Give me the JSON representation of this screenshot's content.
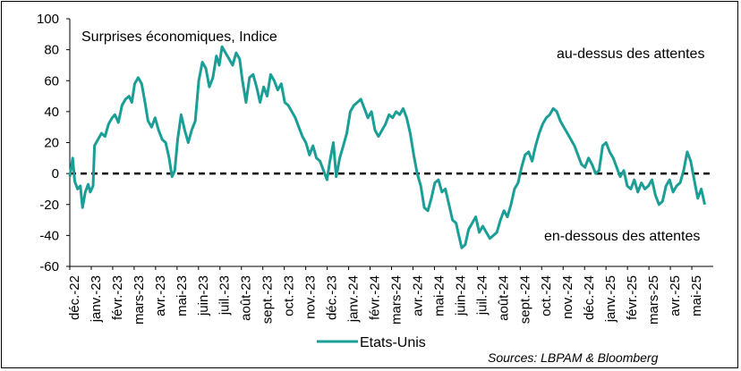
{
  "chart_data": {
    "type": "line",
    "title": "Surprises économiques, Indice",
    "annotations": {
      "above": "au-dessus des attentes",
      "below": "en-dessous des attentes"
    },
    "source": "Sources: LBPAM & Bloomberg",
    "ylim": [
      -60,
      100
    ],
    "yticks": [
      -60,
      -40,
      -20,
      0,
      20,
      40,
      60,
      80,
      100
    ],
    "reference_line": {
      "y": 0,
      "style": "dashed",
      "color": "#000000"
    },
    "x_tick_labels": [
      "déc.-22",
      "janv.-23",
      "févr.-23",
      "mars-23",
      "avr.-23",
      "mai-23",
      "juin-23",
      "juil.-23",
      "août-23",
      "sept.-23",
      "oct.-23",
      "nov.-23",
      "déc.-23",
      "janv.-24",
      "févr.-24",
      "mars-24",
      "avr.-24",
      "mai-24",
      "juin-24",
      "juil.-24",
      "août-24",
      "sept.-24",
      "oct.-24",
      "nov.-24",
      "déc.-24",
      "janv.-25",
      "févr.-25",
      "mars-25",
      "avr.-25",
      "mai-25"
    ],
    "x_start": "2022-12-01",
    "x_end": "2025-06-01",
    "grid": false,
    "legend": "bottom",
    "series": [
      {
        "name": "Etats-Unis",
        "color": "#1a9e96",
        "points": [
          [
            "2022-12-01",
            -2
          ],
          [
            "2022-12-05",
            10
          ],
          [
            "2022-12-08",
            -5
          ],
          [
            "2022-12-12",
            -10
          ],
          [
            "2022-12-16",
            -8
          ],
          [
            "2022-12-19",
            -22
          ],
          [
            "2022-12-23",
            -12
          ],
          [
            "2022-12-27",
            -7
          ],
          [
            "2022-12-30",
            -12
          ],
          [
            "2023-01-03",
            -8
          ],
          [
            "2023-01-05",
            18
          ],
          [
            "2023-01-10",
            22
          ],
          [
            "2023-01-15",
            26
          ],
          [
            "2023-01-20",
            24
          ],
          [
            "2023-01-25",
            32
          ],
          [
            "2023-01-30",
            36
          ],
          [
            "2023-02-03",
            38
          ],
          [
            "2023-02-08",
            33
          ],
          [
            "2023-02-13",
            44
          ],
          [
            "2023-02-18",
            48
          ],
          [
            "2023-02-23",
            50
          ],
          [
            "2023-02-27",
            46
          ],
          [
            "2023-03-03",
            58
          ],
          [
            "2023-03-08",
            62
          ],
          [
            "2023-03-13",
            58
          ],
          [
            "2023-03-18",
            45
          ],
          [
            "2023-03-22",
            34
          ],
          [
            "2023-03-27",
            30
          ],
          [
            "2023-04-01",
            36
          ],
          [
            "2023-04-06",
            28
          ],
          [
            "2023-04-11",
            22
          ],
          [
            "2023-04-16",
            20
          ],
          [
            "2023-04-21",
            10
          ],
          [
            "2023-04-25",
            -2
          ],
          [
            "2023-04-29",
            2
          ],
          [
            "2023-05-03",
            22
          ],
          [
            "2023-05-08",
            38
          ],
          [
            "2023-05-13",
            28
          ],
          [
            "2023-05-18",
            20
          ],
          [
            "2023-05-23",
            28
          ],
          [
            "2023-05-28",
            34
          ],
          [
            "2023-06-02",
            60
          ],
          [
            "2023-06-07",
            72
          ],
          [
            "2023-06-12",
            68
          ],
          [
            "2023-06-17",
            56
          ],
          [
            "2023-06-22",
            62
          ],
          [
            "2023-06-27",
            76
          ],
          [
            "2023-07-01",
            70
          ],
          [
            "2023-07-05",
            82
          ],
          [
            "2023-07-10",
            78
          ],
          [
            "2023-07-15",
            74
          ],
          [
            "2023-07-20",
            70
          ],
          [
            "2023-07-25",
            78
          ],
          [
            "2023-07-30",
            74
          ],
          [
            "2023-08-03",
            60
          ],
          [
            "2023-08-08",
            46
          ],
          [
            "2023-08-13",
            62
          ],
          [
            "2023-08-18",
            64
          ],
          [
            "2023-08-23",
            56
          ],
          [
            "2023-08-28",
            46
          ],
          [
            "2023-09-02",
            56
          ],
          [
            "2023-09-07",
            50
          ],
          [
            "2023-09-12",
            64
          ],
          [
            "2023-09-17",
            60
          ],
          [
            "2023-09-22",
            54
          ],
          [
            "2023-09-27",
            58
          ],
          [
            "2023-10-02",
            46
          ],
          [
            "2023-10-07",
            44
          ],
          [
            "2023-10-12",
            40
          ],
          [
            "2023-10-17",
            36
          ],
          [
            "2023-10-22",
            30
          ],
          [
            "2023-10-27",
            24
          ],
          [
            "2023-11-01",
            20
          ],
          [
            "2023-11-06",
            12
          ],
          [
            "2023-11-11",
            18
          ],
          [
            "2023-11-16",
            10
          ],
          [
            "2023-11-21",
            8
          ],
          [
            "2023-11-26",
            2
          ],
          [
            "2023-12-01",
            -4
          ],
          [
            "2023-12-05",
            8
          ],
          [
            "2023-12-10",
            20
          ],
          [
            "2023-12-14",
            -2
          ],
          [
            "2023-12-19",
            10
          ],
          [
            "2023-12-24",
            18
          ],
          [
            "2023-12-29",
            26
          ],
          [
            "2024-01-03",
            40
          ],
          [
            "2024-01-08",
            44
          ],
          [
            "2024-01-13",
            46
          ],
          [
            "2024-01-18",
            48
          ],
          [
            "2024-01-23",
            42
          ],
          [
            "2024-01-28",
            36
          ],
          [
            "2024-02-02",
            40
          ],
          [
            "2024-02-07",
            28
          ],
          [
            "2024-02-12",
            24
          ],
          [
            "2024-02-17",
            28
          ],
          [
            "2024-02-22",
            32
          ],
          [
            "2024-02-27",
            38
          ],
          [
            "2024-03-03",
            36
          ],
          [
            "2024-03-08",
            40
          ],
          [
            "2024-03-13",
            38
          ],
          [
            "2024-03-18",
            42
          ],
          [
            "2024-03-23",
            36
          ],
          [
            "2024-03-28",
            26
          ],
          [
            "2024-04-02",
            12
          ],
          [
            "2024-04-07",
            0
          ],
          [
            "2024-04-12",
            -8
          ],
          [
            "2024-04-17",
            -22
          ],
          [
            "2024-04-22",
            -24
          ],
          [
            "2024-04-27",
            -16
          ],
          [
            "2024-05-02",
            -6
          ],
          [
            "2024-05-07",
            -4
          ],
          [
            "2024-05-12",
            -12
          ],
          [
            "2024-05-17",
            -10
          ],
          [
            "2024-05-22",
            -20
          ],
          [
            "2024-05-27",
            -30
          ],
          [
            "2024-06-01",
            -32
          ],
          [
            "2024-06-05",
            -40
          ],
          [
            "2024-06-09",
            -48
          ],
          [
            "2024-06-14",
            -46
          ],
          [
            "2024-06-19",
            -36
          ],
          [
            "2024-06-24",
            -32
          ],
          [
            "2024-06-29",
            -28
          ],
          [
            "2024-07-04",
            -38
          ],
          [
            "2024-07-09",
            -34
          ],
          [
            "2024-07-14",
            -38
          ],
          [
            "2024-07-19",
            -42
          ],
          [
            "2024-07-24",
            -40
          ],
          [
            "2024-07-29",
            -38
          ],
          [
            "2024-08-03",
            -30
          ],
          [
            "2024-08-08",
            -24
          ],
          [
            "2024-08-13",
            -28
          ],
          [
            "2024-08-18",
            -20
          ],
          [
            "2024-08-23",
            -10
          ],
          [
            "2024-08-28",
            -6
          ],
          [
            "2024-09-02",
            4
          ],
          [
            "2024-09-07",
            12
          ],
          [
            "2024-09-12",
            14
          ],
          [
            "2024-09-17",
            8
          ],
          [
            "2024-09-22",
            18
          ],
          [
            "2024-09-27",
            26
          ],
          [
            "2024-10-02",
            32
          ],
          [
            "2024-10-07",
            36
          ],
          [
            "2024-10-12",
            38
          ],
          [
            "2024-10-17",
            42
          ],
          [
            "2024-10-22",
            40
          ],
          [
            "2024-10-27",
            34
          ],
          [
            "2024-11-01",
            30
          ],
          [
            "2024-11-06",
            26
          ],
          [
            "2024-11-11",
            22
          ],
          [
            "2024-11-16",
            18
          ],
          [
            "2024-11-21",
            12
          ],
          [
            "2024-11-26",
            6
          ],
          [
            "2024-12-01",
            4
          ],
          [
            "2024-12-06",
            10
          ],
          [
            "2024-12-11",
            6
          ],
          [
            "2024-12-16",
            0
          ],
          [
            "2024-12-21",
            2
          ],
          [
            "2024-12-26",
            18
          ],
          [
            "2024-12-31",
            20
          ],
          [
            "2025-01-05",
            14
          ],
          [
            "2025-01-10",
            10
          ],
          [
            "2025-01-15",
            4
          ],
          [
            "2025-01-20",
            -2
          ],
          [
            "2025-01-25",
            2
          ],
          [
            "2025-01-30",
            -8
          ],
          [
            "2025-02-04",
            -10
          ],
          [
            "2025-02-09",
            -4
          ],
          [
            "2025-02-14",
            -12
          ],
          [
            "2025-02-19",
            -6
          ],
          [
            "2025-02-24",
            -10
          ],
          [
            "2025-03-01",
            -8
          ],
          [
            "2025-03-06",
            -4
          ],
          [
            "2025-03-11",
            -14
          ],
          [
            "2025-03-16",
            -20
          ],
          [
            "2025-03-21",
            -18
          ],
          [
            "2025-03-26",
            -8
          ],
          [
            "2025-03-31",
            -4
          ],
          [
            "2025-04-05",
            -12
          ],
          [
            "2025-04-10",
            -8
          ],
          [
            "2025-04-15",
            -6
          ],
          [
            "2025-04-20",
            2
          ],
          [
            "2025-04-25",
            14
          ],
          [
            "2025-04-30",
            8
          ],
          [
            "2025-05-05",
            -4
          ],
          [
            "2025-05-10",
            -16
          ],
          [
            "2025-05-15",
            -10
          ],
          [
            "2025-05-20",
            -20
          ]
        ]
      }
    ]
  }
}
